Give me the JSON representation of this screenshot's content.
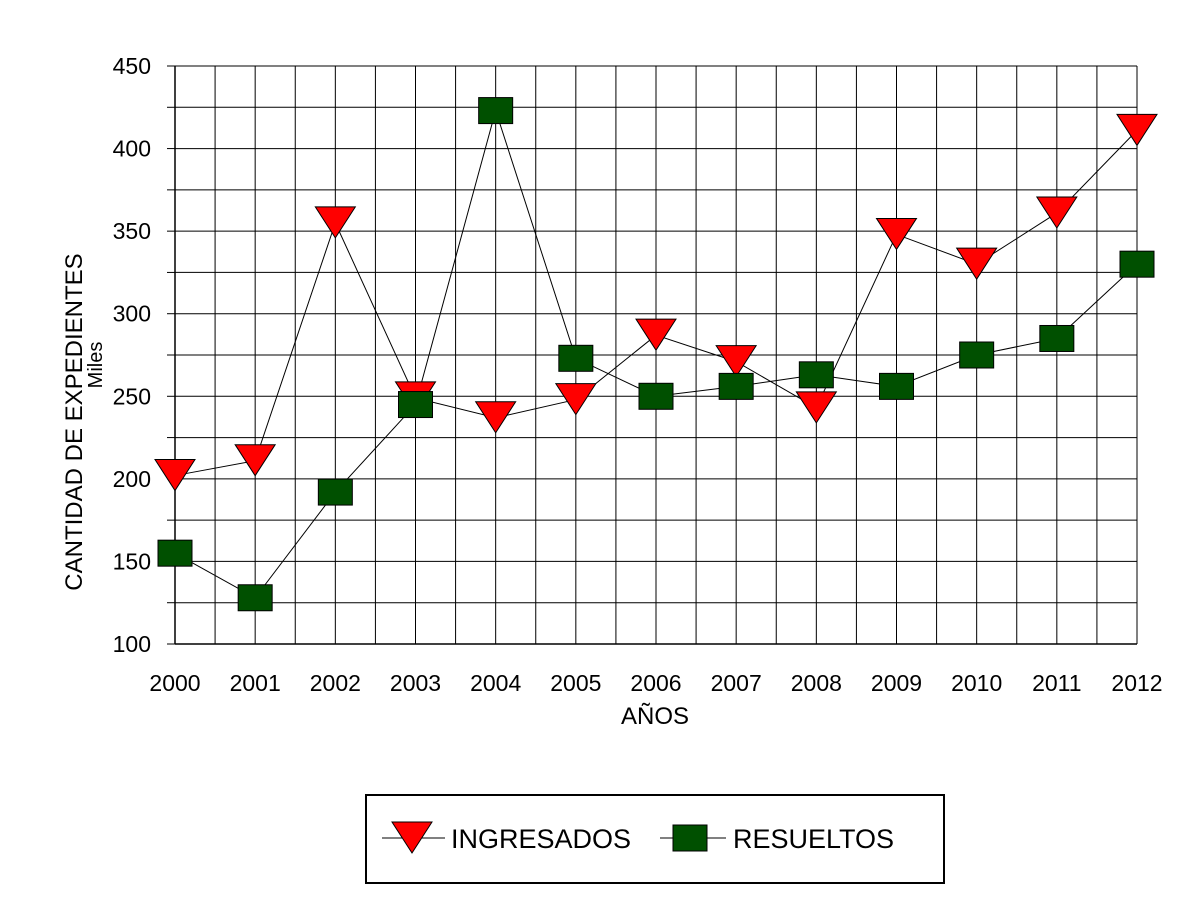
{
  "chart_data": {
    "type": "line",
    "title": "",
    "xlabel": "AÑOS",
    "ylabel": "CANTIDAD DE EXPEDIENTES",
    "y_unit_label": "Miles",
    "ylim": [
      100,
      450
    ],
    "y_ticks": [
      100,
      150,
      200,
      250,
      300,
      350,
      400,
      450
    ],
    "grid": true,
    "legend_position": "bottom",
    "categories": [
      "2000",
      "2001",
      "2002",
      "2003",
      "2004",
      "2005",
      "2006",
      "2007",
      "2008",
      "2009",
      "2010",
      "2011",
      "2012"
    ],
    "series": [
      {
        "name": "INGRESADOS",
        "marker": "triangle-down",
        "color": "#ff0000",
        "values": [
          202,
          211,
          355,
          249,
          237,
          248,
          287,
          271,
          243,
          348,
          330,
          361,
          411
        ]
      },
      {
        "name": "RESUELTOS",
        "marker": "square",
        "color": "#005000",
        "values": [
          155,
          128,
          192,
          245,
          423,
          273,
          250,
          256,
          263,
          256,
          275,
          285,
          330
        ]
      }
    ]
  }
}
